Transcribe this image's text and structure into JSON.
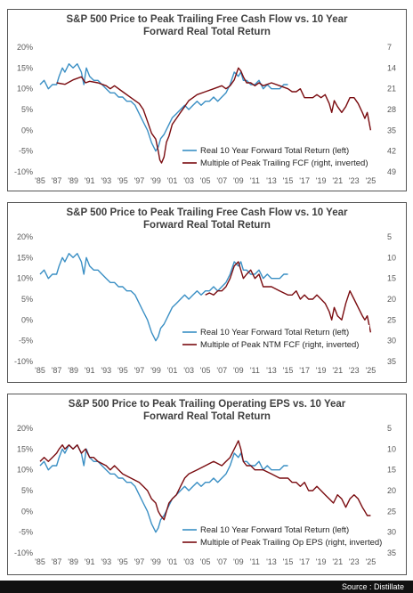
{
  "source": "Source : Distillate",
  "colors": {
    "return_line": "#3a8fc4",
    "multiple_line": "#7a0c10"
  },
  "chart_data": [
    {
      "type": "line",
      "title_line1": "S&P 500 Price to Peak Trailing Free Cash Flow vs. 10 Year",
      "title_line2": "Forward Real Total Return",
      "x_ticks": [
        "'85",
        "'87",
        "'89",
        "'91",
        "'93",
        "'95",
        "'97",
        "'99",
        "'01",
        "'03",
        "'05",
        "'07",
        "'09",
        "'11",
        "'13",
        "'15",
        "'17",
        "'19",
        "'21",
        "'23",
        "'25"
      ],
      "xlim": [
        1985,
        2025.5
      ],
      "y_left_ticks": [
        "20%",
        "15%",
        "10%",
        "5%",
        "0%",
        "-5%",
        "-10%"
      ],
      "ylim_left": [
        -10,
        20
      ],
      "y_right_ticks": [
        "7",
        "14",
        "21",
        "28",
        "35",
        "42",
        "49"
      ],
      "ylim_right_inverted": [
        7,
        49
      ],
      "legend_position": "bottom-right",
      "series": [
        {
          "name": "Real 10 Year Forward Total Return (left)",
          "axis": "left",
          "x": [
            1985.0,
            1985.5,
            1986.0,
            1986.5,
            1987.0,
            1987.3,
            1987.7,
            1988.0,
            1988.5,
            1989.0,
            1989.5,
            1990.0,
            1990.3,
            1990.6,
            1991.0,
            1991.5,
            1992.0,
            1992.5,
            1993.0,
            1993.5,
            1994.0,
            1994.5,
            1995.0,
            1995.5,
            1996.0,
            1996.5,
            1997.0,
            1997.5,
            1998.0,
            1998.5,
            1999.0,
            1999.3,
            1999.6,
            2000.0,
            2000.5,
            2001.0,
            2001.5,
            2002.0,
            2002.5,
            2003.0,
            2003.5,
            2004.0,
            2004.5,
            2005.0,
            2005.5,
            2006.0,
            2006.5,
            2007.0,
            2007.5,
            2008.0,
            2008.5,
            2009.0,
            2009.3,
            2009.6,
            2010.0,
            2010.5,
            2011.0,
            2011.5,
            2012.0,
            2012.5,
            2013.0,
            2013.5,
            2014.0,
            2014.5,
            2015.0
          ],
          "values": [
            11,
            12,
            10,
            11,
            11,
            13,
            15,
            14,
            16,
            15,
            16,
            14,
            11,
            15,
            13,
            12,
            12,
            11,
            10,
            9,
            9,
            8,
            8,
            7,
            7,
            6,
            4,
            2,
            0,
            -3,
            -5,
            -4,
            -2,
            -1,
            1,
            3,
            4,
            5,
            6,
            5,
            6,
            7,
            6,
            7,
            7,
            8,
            7,
            8,
            9,
            11,
            14,
            13,
            14,
            12,
            12,
            11,
            11,
            12,
            10,
            11,
            10,
            10,
            10,
            11,
            11
          ]
        },
        {
          "name": "Multiple of Peak Trailing FCF (right, inverted)",
          "axis": "right",
          "x": [
            1987.0,
            1988.0,
            1989.0,
            1990.0,
            1990.5,
            1991.0,
            1992.0,
            1993.0,
            1993.5,
            1994.0,
            1995.0,
            1996.0,
            1997.0,
            1997.5,
            1998.0,
            1998.5,
            1999.0,
            1999.3,
            1999.5,
            1999.7,
            2000.0,
            2000.3,
            2000.6,
            2001.0,
            2001.5,
            2002.0,
            2002.5,
            2003.0,
            2003.5,
            2004.0,
            2005.0,
            2006.0,
            2007.0,
            2007.5,
            2008.0,
            2008.5,
            2009.0,
            2009.3,
            2009.6,
            2010.0,
            2010.5,
            2011.0,
            2011.5,
            2012.0,
            2013.0,
            2014.0,
            2015.0,
            2015.5,
            2016.0,
            2016.5,
            2017.0,
            2017.5,
            2018.0,
            2018.5,
            2019.0,
            2019.5,
            2020.0,
            2020.3,
            2020.6,
            2021.0,
            2021.5,
            2022.0,
            2022.5,
            2023.0,
            2023.5,
            2024.0,
            2024.3,
            2024.6,
            2025.0
          ],
          "values": [
            19,
            19.5,
            18,
            17,
            19,
            18.5,
            19,
            20,
            21,
            20,
            22,
            24,
            26,
            28,
            32,
            36,
            38,
            42,
            45,
            46,
            44,
            39,
            37,
            33,
            31,
            29,
            27,
            25,
            24,
            23,
            22,
            21,
            20,
            21,
            20,
            18,
            14,
            15,
            17,
            19,
            19,
            20,
            19,
            20,
            19,
            20,
            21,
            22,
            22,
            21,
            24,
            24,
            24,
            23,
            24,
            23,
            26,
            29,
            25,
            27,
            29,
            27,
            24,
            24,
            26,
            29,
            31,
            29,
            35
          ]
        }
      ]
    },
    {
      "type": "line",
      "title_line1": "S&P 500 Price to Peak Trailing Free Cash Flow vs. 10 Year",
      "title_line2": "Forward Real Total Return",
      "x_ticks": [
        "'85",
        "'87",
        "'89",
        "'91",
        "'93",
        "'95",
        "'97",
        "'99",
        "'01",
        "'03",
        "'05",
        "'07",
        "'09",
        "'11",
        "'13",
        "'15",
        "'17",
        "'19",
        "'21",
        "'23",
        "'25"
      ],
      "xlim": [
        1985,
        2025.5
      ],
      "y_left_ticks": [
        "20%",
        "15%",
        "10%",
        "5%",
        "0%",
        "-5%",
        "-10%"
      ],
      "ylim_left": [
        -10,
        20
      ],
      "y_right_ticks": [
        "5",
        "10",
        "15",
        "20",
        "25",
        "30",
        "35"
      ],
      "ylim_right_inverted": [
        5,
        35
      ],
      "legend_position": "bottom-right",
      "series": [
        {
          "name": "Real 10 Year Forward Total Return (left)",
          "axis": "left",
          "x": [
            1985.0,
            1985.5,
            1986.0,
            1986.5,
            1987.0,
            1987.3,
            1987.7,
            1988.0,
            1988.5,
            1989.0,
            1989.5,
            1990.0,
            1990.3,
            1990.6,
            1991.0,
            1991.5,
            1992.0,
            1992.5,
            1993.0,
            1993.5,
            1994.0,
            1994.5,
            1995.0,
            1995.5,
            1996.0,
            1996.5,
            1997.0,
            1997.5,
            1998.0,
            1998.5,
            1999.0,
            1999.3,
            1999.6,
            2000.0,
            2000.5,
            2001.0,
            2001.5,
            2002.0,
            2002.5,
            2003.0,
            2003.5,
            2004.0,
            2004.5,
            2005.0,
            2005.5,
            2006.0,
            2006.5,
            2007.0,
            2007.5,
            2008.0,
            2008.5,
            2009.0,
            2009.3,
            2009.6,
            2010.0,
            2010.5,
            2011.0,
            2011.5,
            2012.0,
            2012.5,
            2013.0,
            2013.5,
            2014.0,
            2014.5,
            2015.0
          ],
          "values": [
            11,
            12,
            10,
            11,
            11,
            13,
            15,
            14,
            16,
            15,
            16,
            14,
            11,
            15,
            13,
            12,
            12,
            11,
            10,
            9,
            9,
            8,
            8,
            7,
            7,
            6,
            4,
            2,
            0,
            -3,
            -5,
            -4,
            -2,
            -1,
            1,
            3,
            4,
            5,
            6,
            5,
            6,
            7,
            6,
            7,
            7,
            8,
            7,
            8,
            9,
            11,
            14,
            13,
            14,
            12,
            12,
            11,
            11,
            12,
            10,
            11,
            10,
            10,
            10,
            11,
            11
          ]
        },
        {
          "name": "Multiple of Peak NTM FCF (right, inverted)",
          "axis": "right",
          "x": [
            2005.0,
            2005.5,
            2006.0,
            2006.5,
            2007.0,
            2007.5,
            2008.0,
            2008.5,
            2009.0,
            2009.3,
            2009.6,
            2010.0,
            2010.5,
            2011.0,
            2011.5,
            2012.0,
            2013.0,
            2014.0,
            2015.0,
            2015.5,
            2016.0,
            2016.5,
            2017.0,
            2017.5,
            2018.0,
            2018.5,
            2019.0,
            2019.5,
            2020.0,
            2020.3,
            2020.6,
            2021.0,
            2021.5,
            2022.0,
            2022.5,
            2023.0,
            2023.5,
            2024.0,
            2024.3,
            2024.6,
            2025.0
          ],
          "values": [
            19,
            18.5,
            19,
            18,
            18,
            17,
            15,
            12,
            11,
            13,
            15,
            14,
            13,
            15,
            14,
            17,
            17,
            18,
            19,
            19,
            18,
            20,
            19,
            20,
            20,
            19,
            20,
            21,
            23,
            25,
            22,
            24,
            25,
            21,
            18,
            20,
            22,
            24,
            25,
            24,
            28
          ]
        }
      ]
    },
    {
      "type": "line",
      "title_line1": "S&P 500 Price to Peak Trailing Operating EPS vs. 10 Year",
      "title_line2": "Forward Real Total Return",
      "x_ticks": [
        "'85",
        "'87",
        "'89",
        "'91",
        "'93",
        "'95",
        "'97",
        "'99",
        "'01",
        "'03",
        "'05",
        "'07",
        "'09",
        "'11",
        "'13",
        "'15",
        "'17",
        "'19",
        "'21",
        "'23",
        "'25"
      ],
      "xlim": [
        1985,
        2025.5
      ],
      "y_left_ticks": [
        "20%",
        "15%",
        "10%",
        "5%",
        "0%",
        "-5%",
        "-10%"
      ],
      "ylim_left": [
        -10,
        20
      ],
      "y_right_ticks": [
        "5",
        "10",
        "15",
        "20",
        "25",
        "30",
        "35"
      ],
      "ylim_right_inverted": [
        5,
        35
      ],
      "legend_position": "bottom-right",
      "series": [
        {
          "name": "Real 10 Year Forward Total Return (left)",
          "axis": "left",
          "x": [
            1985.0,
            1985.5,
            1986.0,
            1986.5,
            1987.0,
            1987.3,
            1987.7,
            1988.0,
            1988.5,
            1989.0,
            1989.5,
            1990.0,
            1990.3,
            1990.6,
            1991.0,
            1991.5,
            1992.0,
            1992.5,
            1993.0,
            1993.5,
            1994.0,
            1994.5,
            1995.0,
            1995.5,
            1996.0,
            1996.5,
            1997.0,
            1997.5,
            1998.0,
            1998.5,
            1999.0,
            1999.3,
            1999.6,
            2000.0,
            2000.5,
            2001.0,
            2001.5,
            2002.0,
            2002.5,
            2003.0,
            2003.5,
            2004.0,
            2004.5,
            2005.0,
            2005.5,
            2006.0,
            2006.5,
            2007.0,
            2007.5,
            2008.0,
            2008.5,
            2009.0,
            2009.3,
            2009.6,
            2010.0,
            2010.5,
            2011.0,
            2011.5,
            2012.0,
            2012.5,
            2013.0,
            2013.5,
            2014.0,
            2014.5,
            2015.0
          ],
          "values": [
            11,
            12,
            10,
            11,
            11,
            13,
            15,
            14,
            16,
            15,
            16,
            14,
            11,
            15,
            13,
            12,
            12,
            11,
            10,
            9,
            9,
            8,
            8,
            7,
            7,
            6,
            4,
            2,
            0,
            -3,
            -5,
            -4,
            -2,
            -1,
            1,
            3,
            4,
            5,
            6,
            5,
            6,
            7,
            6,
            7,
            7,
            8,
            7,
            8,
            9,
            11,
            14,
            13,
            14,
            12,
            12,
            11,
            11,
            12,
            10,
            11,
            10,
            10,
            10,
            11,
            11
          ]
        },
        {
          "name": "Multiple of Peak Trailing Op EPS (right, inverted)",
          "axis": "right",
          "x": [
            1985.0,
            1985.5,
            1986.0,
            1986.5,
            1987.0,
            1987.3,
            1987.7,
            1988.0,
            1988.5,
            1989.0,
            1989.5,
            1990.0,
            1990.5,
            1991.0,
            1991.5,
            1992.0,
            1993.0,
            1993.5,
            1994.0,
            1995.0,
            1996.0,
            1997.0,
            1997.5,
            1998.0,
            1998.5,
            1999.0,
            1999.3,
            1999.6,
            2000.0,
            2000.3,
            2000.6,
            2001.0,
            2001.5,
            2002.0,
            2002.5,
            2003.0,
            2004.0,
            2005.0,
            2006.0,
            2007.0,
            2007.5,
            2008.0,
            2008.5,
            2009.0,
            2009.3,
            2009.6,
            2010.0,
            2010.5,
            2011.0,
            2012.0,
            2013.0,
            2014.0,
            2015.0,
            2015.5,
            2016.0,
            2016.5,
            2017.0,
            2017.5,
            2018.0,
            2018.5,
            2019.0,
            2019.5,
            2020.0,
            2020.5,
            2021.0,
            2021.5,
            2022.0,
            2022.5,
            2023.0,
            2023.5,
            2024.0,
            2024.3,
            2024.6,
            2025.0
          ],
          "values": [
            13,
            12,
            13,
            12,
            11,
            10,
            9,
            10,
            9,
            10,
            9,
            11,
            10,
            12,
            12,
            13,
            14,
            15,
            14,
            16,
            17,
            18,
            19,
            20,
            22,
            23,
            25,
            26,
            27,
            25,
            23,
            22,
            21,
            19,
            17,
            16,
            15,
            14,
            13,
            14,
            13,
            12,
            10,
            8,
            10,
            13,
            14,
            14,
            15,
            15,
            16,
            17,
            17,
            18,
            18,
            19,
            18,
            20,
            20,
            19,
            20,
            21,
            22,
            23,
            21,
            22,
            24,
            22,
            21,
            22,
            24,
            25,
            26,
            26
          ]
        }
      ]
    }
  ]
}
